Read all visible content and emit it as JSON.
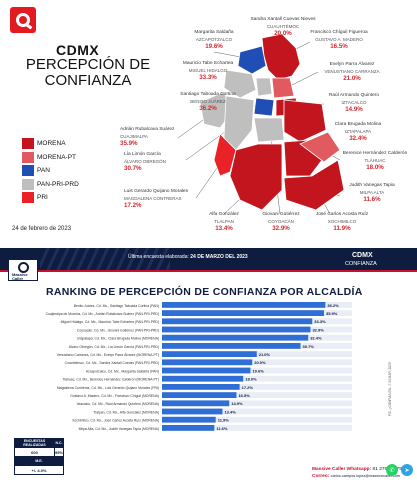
{
  "header": {
    "title": "CDMX",
    "subtitle": "PERCEPCIÓN DE CONFIANZA",
    "date": "24 de febrero de 2023"
  },
  "legend": [
    {
      "label": "MORENA",
      "color": "#c3151e"
    },
    {
      "label": "MORENA-PT",
      "color": "#e15a60"
    },
    {
      "label": "PAN",
      "color": "#1f4fb5"
    },
    {
      "label": "PAN-PRI-PRD",
      "color": "#bfbfbf"
    },
    {
      "label": "PRI",
      "color": "#ea2127"
    }
  ],
  "callouts": [
    {
      "name": "Sandra Xantall Cuevas Nieves",
      "alcaldia": "CUAUHTÉMOC",
      "pct": "20.0%"
    },
    {
      "name": "Margarita Saldaña",
      "alcaldia": "AZCAPOTZALCO",
      "pct": "19.6%"
    },
    {
      "name": "Francisco Chíguil Figueroa",
      "alcaldia": "GUSTAVO A. MADERO",
      "pct": "16.5%"
    },
    {
      "name": "Mauricio Tabe Echartea",
      "alcaldia": "MIGUEL HIDALGO",
      "pct": "33.3%"
    },
    {
      "name": "Evelyn Parra Álvarez",
      "alcaldia": "VENUSTIANO CARRANZA",
      "pct": "21.0%"
    },
    {
      "name": "Santiago Taboada Cortina",
      "alcaldia": "BENITO JUÁREZ",
      "pct": "36.2%"
    },
    {
      "name": "Raúl Armando Quintero",
      "alcaldia": "IZTACALCO",
      "pct": "14.9%"
    },
    {
      "name": "Adrián Rubalcava Suárez",
      "alcaldia": "CUAJIMALPA",
      "pct": "35.9%"
    },
    {
      "name": "Clara Brugada Molina",
      "alcaldia": "IZTAPALAPA",
      "pct": "32.4%"
    },
    {
      "name": "Lía Limón García",
      "alcaldia": "ÁLVARO OBREGÓN",
      "pct": "30.7%"
    },
    {
      "name": "Berenice Hernández Calderón",
      "alcaldia": "TLÁHUAC",
      "pct": "18.0%"
    },
    {
      "name": "Luis Gerardo Quijano Morales",
      "alcaldia": "MAGDALENA CONTRERAS",
      "pct": "17.2%"
    },
    {
      "name": "Judith Vanegas Tapia",
      "alcaldia": "MILPA ALTA",
      "pct": "11.6%"
    },
    {
      "name": "Alfa González",
      "alcaldia": "TLALPAN",
      "pct": "13.4%"
    },
    {
      "name": "Giovani Gutiérrez",
      "alcaldia": "COYOACÁN",
      "pct": "32.9%"
    },
    {
      "name": "José Carlos Acosta Ruíz",
      "alcaldia": "XOCHIMILCO",
      "pct": "11.9%"
    }
  ],
  "ranking": {
    "poll_label": "Última encuesta elaborada:",
    "poll_date": "24 DE MARZO DEL 2023",
    "panel_title": "CDMX",
    "panel_subtitle": "CONFIANZA",
    "brand": "Massive Caller",
    "title": "RANKING DE PERCEPCIÓN DE CONFIANZA POR ALCALDÍA",
    "side_note": "P.E. ¿CONFIÁS EN...? 24 MAR. 2023",
    "table_headers": [
      "ENCUESTAS REALIZADAS",
      "N.C.",
      "M.E."
    ],
    "table_values": [
      "600",
      "95%",
      "+/- 4.0%"
    ],
    "contact_whatsapp_label": "Massive Caller Whatsapp:",
    "contact_whatsapp": "81 2798 3079",
    "contact_email_label": "Correo:",
    "contact_email": "carlos.campos.lopez@massivecaller.com"
  },
  "chart_data": {
    "type": "bar",
    "orientation": "horizontal",
    "title": "RANKING DE PERCEPCIÓN DE CONFIANZA POR ALCALDÍA",
    "categories": [
      "Benito Juárez, Cd. Mx., Santiago Taboada Cortina (PAN)",
      "Cuajimalpa de Morelos, Cd. Mx., Adrián Rubalcava Suárez (PAN-PRI-PRD)",
      "Miguel Hidalgo, Cd. Mx., Mauricio Tabe Echartea (PAN-PRI-PRD)",
      "Coyoacán, Cd. Mx., Giovani Gutiérrez (PAN-PRI-PRD)",
      "Iztapalapa, Cd. Mx., Clara Brugada Molina (MORENA)",
      "Álvaro Obregón, Cd. Mx., Lía Limón García (PAN-PRI-PRD)",
      "Venustiano Carranza, Cd. Mx., Evelyn Parra Álvarez (MORENA-PT)",
      "Cuauhtémoc, Cd. Mx., Sandra Xantall Cuevas (PAN-PRI-PRD)",
      "Azcapotzalco, Cd. Mx., Margarita Saldaña (PAN)",
      "Tláhuac, Cd. Mx., Berenice Hernández Calderón (MORENA-PT)",
      "Magdalena Contreras, Cd. Mx., Luis Gerardo Quijano Morales (PRI)",
      "Gustavo A. Madero, Cd. Mx., Francisco Chíguil (MORENA)",
      "Iztacalco, Cd. Mx., Raúl Armando Quintero (MORENA)",
      "Tlalpan, Cd. Mx., Alfa González (MORENA)",
      "Xochimilco, Cd. Mx., José Carlos Acosta Ruíz (MORENA)",
      "Milpa Alta, Cd. Mx., Judith Vanegas Tapia (MORENA)"
    ],
    "values": [
      36.2,
      35.9,
      33.3,
      32.9,
      32.4,
      30.7,
      21.0,
      20.0,
      19.6,
      18.0,
      17.2,
      16.5,
      14.9,
      13.4,
      11.9,
      11.6
    ],
    "value_labels": [
      "36.2%",
      "35.9%",
      "33.3%",
      "32.9%",
      "32.4%",
      "30.7%",
      "21.0%",
      "20.0%",
      "19.6%",
      "18.0%",
      "17.2%",
      "16.5%",
      "14.9%",
      "13.4%",
      "11.9%",
      "11.6%"
    ],
    "xlim": [
      0,
      40
    ],
    "bar_color": "#2f6ed5"
  }
}
